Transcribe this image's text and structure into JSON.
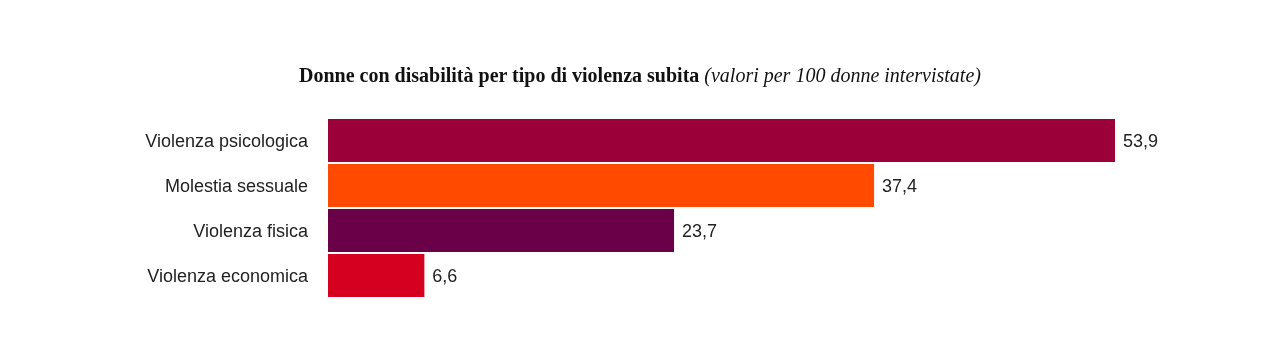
{
  "chart_data": {
    "type": "bar",
    "orientation": "horizontal",
    "title": "Donne con disabilità per tipo di violenza subita",
    "subtitle": "(valori per 100 donne intervistate)",
    "categories": [
      "Violenza psicologica",
      "Molestia sessuale",
      "Violenza fisica",
      "Violenza economica"
    ],
    "values": [
      53.9,
      37.4,
      23.7,
      6.6
    ],
    "value_labels": [
      "53,9",
      "37,4",
      "23,7",
      "6,6"
    ],
    "colors": [
      "#9b0039",
      "#ff4a00",
      "#6a0048",
      "#d5001f"
    ]
  }
}
